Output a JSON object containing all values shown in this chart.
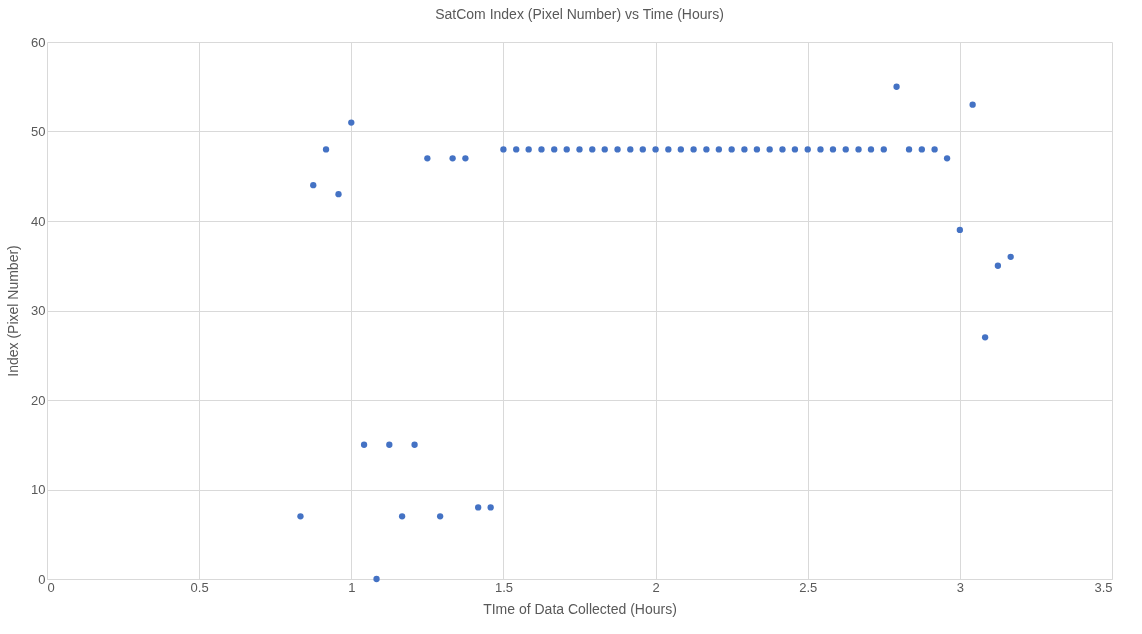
{
  "chart_data": {
    "type": "scatter",
    "title": "SatCom Index (Pixel Number) vs Time (Hours)",
    "xlabel": "TIme of Data Collected (Hours)",
    "ylabel": "Index (Pixel Number)",
    "x": [
      0.833,
      0.875,
      0.917,
      0.958,
      1.0,
      1.042,
      1.083,
      1.125,
      1.167,
      1.208,
      1.25,
      1.292,
      1.333,
      1.375,
      1.417,
      1.458,
      1.5,
      1.542,
      1.583,
      1.625,
      1.667,
      1.708,
      1.75,
      1.792,
      1.833,
      1.875,
      1.917,
      1.958,
      2.0,
      2.042,
      2.083,
      2.125,
      2.167,
      2.208,
      2.25,
      2.292,
      2.333,
      2.375,
      2.417,
      2.458,
      2.5,
      2.542,
      2.583,
      2.625,
      2.667,
      2.708,
      2.75,
      2.792,
      2.833,
      2.875,
      2.917,
      2.958,
      3.0,
      3.042,
      3.083,
      3.125,
      3.167
    ],
    "series": [
      {
        "color": "#4472c4",
        "values": [
          7,
          44,
          48,
          43,
          51,
          15,
          0,
          15,
          7,
          15,
          47,
          7,
          47,
          47,
          8,
          8,
          48,
          48,
          48,
          48,
          48,
          48,
          48,
          48,
          48,
          48,
          48,
          48,
          48,
          48,
          48,
          48,
          48,
          48,
          48,
          48,
          48,
          48,
          48,
          48,
          48,
          48,
          48,
          48,
          48,
          48,
          48,
          55,
          48,
          48,
          48,
          47,
          39,
          53,
          27,
          35,
          36
        ]
      }
    ],
    "xlim": [
      0,
      3.5
    ],
    "xticks": [
      0,
      0.5,
      1,
      1.5,
      2,
      2.5,
      3,
      3.5
    ],
    "ylim": [
      0,
      60
    ],
    "yticks": [
      0,
      10,
      20,
      30,
      40,
      50,
      60
    ],
    "grid": true,
    "marker": "circle"
  }
}
